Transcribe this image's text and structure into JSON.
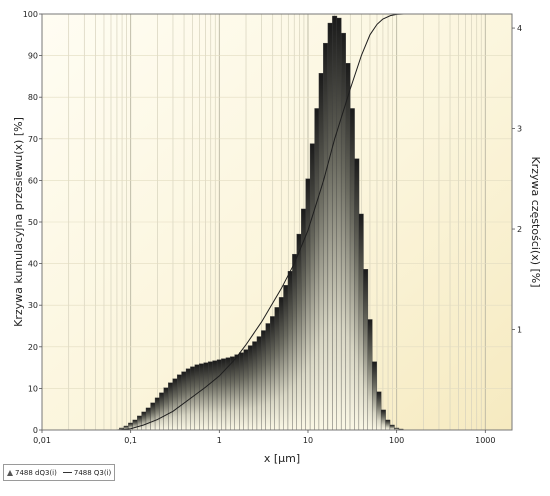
{
  "chart_data": {
    "type": "bar",
    "xlabel": "x [µm]",
    "ylabel_left": "Krzywa kumulacyjna przesiewu(x) [%]",
    "ylabel_right": "Krzywa częstości(x) [%]",
    "x_scale": "log",
    "xlim": [
      0.01,
      2000
    ],
    "x_ticks": [
      {
        "value": 0.01,
        "label": "0,01"
      },
      {
        "value": 0.1,
        "label": "0,1"
      },
      {
        "value": 1,
        "label": "1"
      },
      {
        "value": 10,
        "label": "10"
      },
      {
        "value": 100,
        "label": "100"
      },
      {
        "value": 1000,
        "label": "1000"
      }
    ],
    "ylim_left": [
      0,
      100
    ],
    "y_ticks_left": [
      0,
      10,
      20,
      30,
      40,
      50,
      60,
      70,
      80,
      90,
      100
    ],
    "ylim_right": [
      0,
      4.14
    ],
    "y_ticks_right": [
      1,
      2,
      3,
      4
    ],
    "grid": true,
    "legend_position": "bottom-left",
    "series": [
      {
        "name": "7488 dQ3(i)",
        "kind": "histogram",
        "axis": "right",
        "x": [
          0.079,
          0.089,
          0.1,
          0.112,
          0.126,
          0.141,
          0.158,
          0.178,
          0.2,
          0.224,
          0.251,
          0.282,
          0.316,
          0.355,
          0.398,
          0.447,
          0.501,
          0.562,
          0.631,
          0.708,
          0.794,
          0.891,
          1.0,
          1.12,
          1.26,
          1.41,
          1.58,
          1.78,
          2.0,
          2.24,
          2.51,
          2.82,
          3.16,
          3.55,
          3.98,
          4.47,
          5.01,
          5.62,
          6.31,
          7.08,
          7.94,
          8.91,
          10.0,
          11.2,
          12.6,
          14.1,
          15.8,
          17.8,
          20.0,
          22.4,
          25.1,
          28.2,
          31.6,
          35.5,
          39.8,
          44.7,
          50.1,
          56.2,
          63.1,
          70.8,
          79.4,
          89.1,
          100,
          112
        ],
        "values": [
          0.02,
          0.04,
          0.07,
          0.1,
          0.14,
          0.18,
          0.22,
          0.27,
          0.32,
          0.37,
          0.42,
          0.47,
          0.51,
          0.55,
          0.58,
          0.61,
          0.63,
          0.65,
          0.66,
          0.67,
          0.68,
          0.69,
          0.7,
          0.71,
          0.72,
          0.73,
          0.75,
          0.77,
          0.8,
          0.84,
          0.88,
          0.93,
          0.99,
          1.06,
          1.13,
          1.22,
          1.32,
          1.44,
          1.58,
          1.75,
          1.95,
          2.2,
          2.5,
          2.85,
          3.2,
          3.55,
          3.85,
          4.05,
          4.12,
          4.1,
          3.95,
          3.65,
          3.2,
          2.7,
          2.15,
          1.6,
          1.1,
          0.68,
          0.38,
          0.2,
          0.1,
          0.05,
          0.02,
          0.01
        ]
      },
      {
        "name": "7488 Q3(i)",
        "kind": "line",
        "axis": "left",
        "x": [
          0.07,
          0.1,
          0.14,
          0.2,
          0.3,
          0.5,
          0.7,
          1.0,
          1.5,
          2.0,
          3.0,
          5.0,
          7.0,
          10.0,
          15.0,
          20.0,
          30.0,
          40.0,
          50.0,
          60.0,
          70.0,
          85.0,
          100.0,
          120.0
        ],
        "values": [
          0,
          0.3,
          1.2,
          2.5,
          4.5,
          8.0,
          10.3,
          13.0,
          17.0,
          20.5,
          26.0,
          34.0,
          40.0,
          48.0,
          60.0,
          70.0,
          82.0,
          90.0,
          95.0,
          97.5,
          98.8,
          99.6,
          99.9,
          100
        ]
      }
    ]
  },
  "legend": {
    "item1": "7488 dQ3(i)",
    "item2": "7488 Q3(i)"
  }
}
